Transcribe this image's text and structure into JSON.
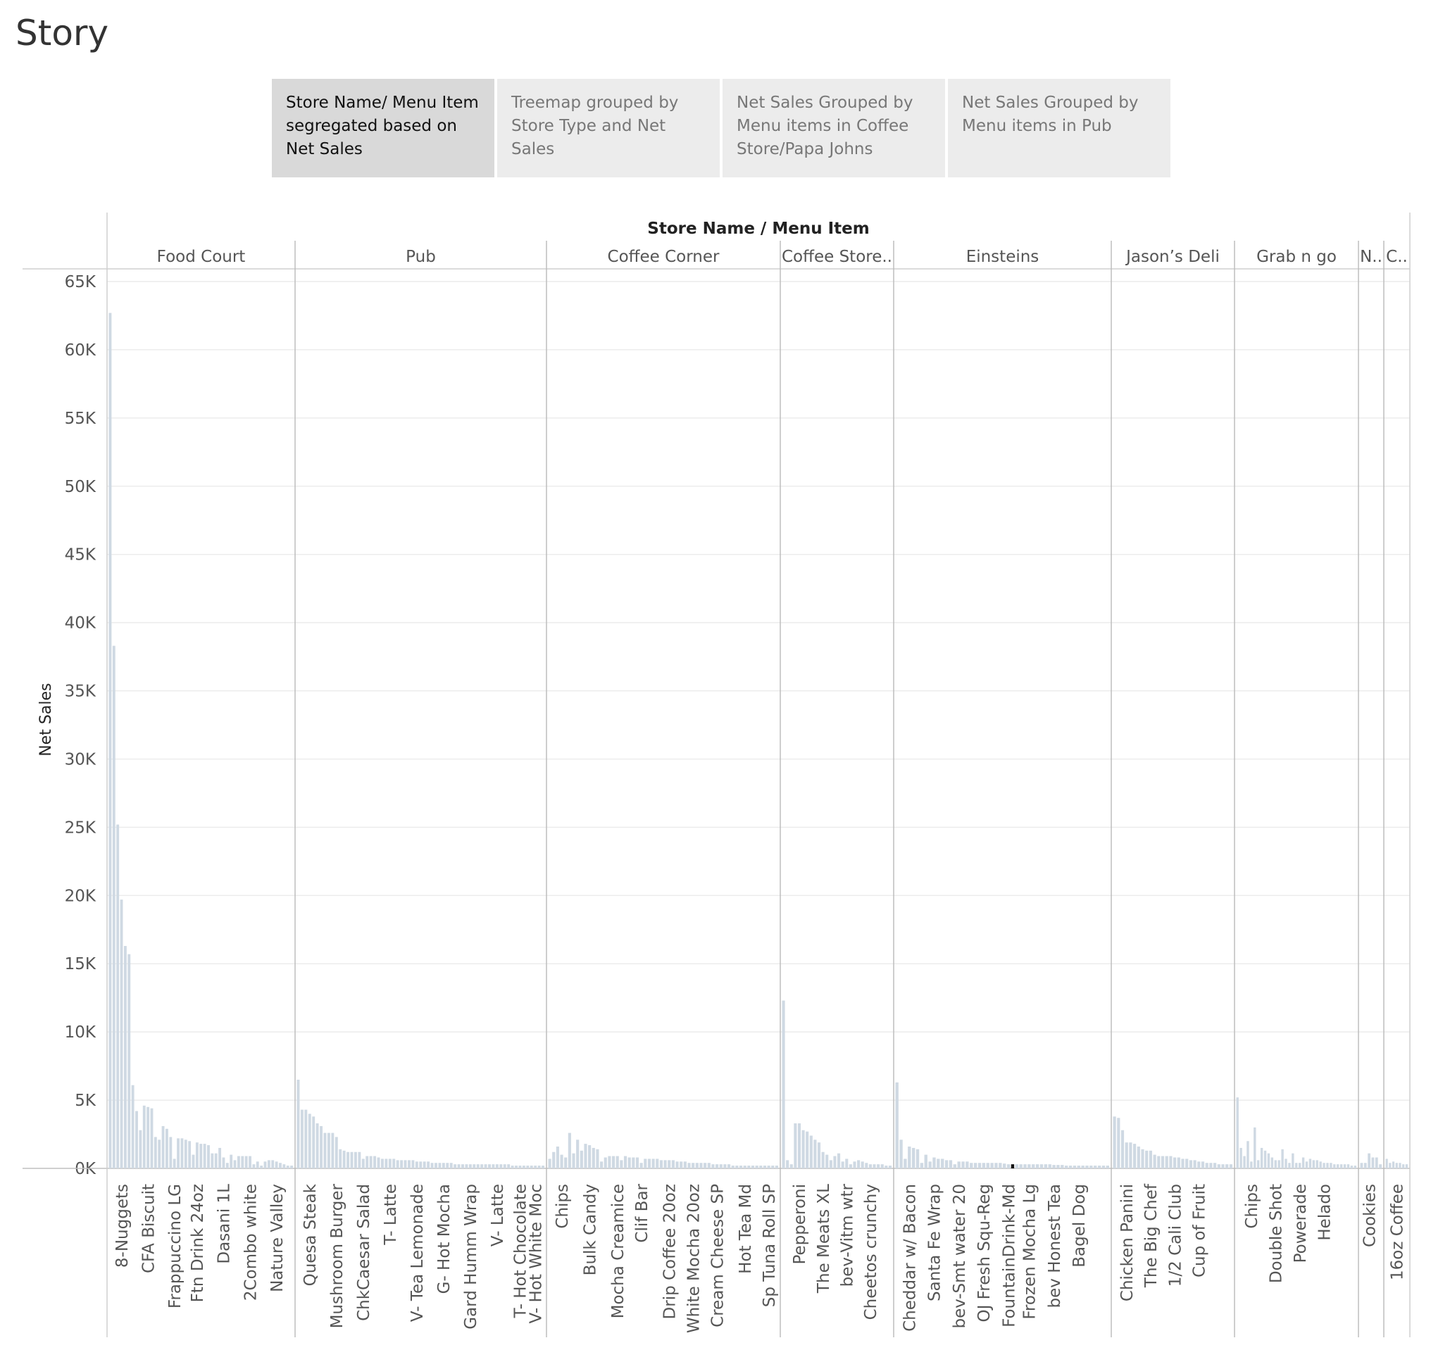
{
  "story": {
    "title": "Story",
    "tabs": [
      {
        "label": "Store Name/ Menu Item segregated based on Net Sales",
        "active": true
      },
      {
        "label": "Treemap grouped by Store Type and Net Sales",
        "active": false
      },
      {
        "label": "Net Sales Grouped by Menu items in Coffee Store/Papa Johns",
        "active": false
      },
      {
        "label": "Net Sales Grouped by Menu items in Pub",
        "active": false
      }
    ]
  },
  "chart_data": {
    "type": "bar",
    "header_title": "Store Name  /  Menu Item",
    "ylabel": "Net Sales",
    "ylim": [
      0,
      65000
    ],
    "yticks": [
      0,
      5000,
      10000,
      15000,
      20000,
      25000,
      30000,
      35000,
      40000,
      45000,
      50000,
      55000,
      60000,
      65000
    ],
    "ytick_labels": [
      "0K",
      "5K",
      "10K",
      "15K",
      "20K",
      "25K",
      "30K",
      "35K",
      "40K",
      "45K",
      "50K",
      "55K",
      "60K",
      "65K"
    ],
    "bar_color": "#cfd9e3",
    "highlight_color": "#111111",
    "grid": true,
    "groups": [
      {
        "name": "Food Court",
        "values": [
          62700,
          38300,
          25200,
          19700,
          16300,
          15700,
          6100,
          4200,
          2800,
          4600,
          4500,
          4400,
          2300,
          2100,
          3100,
          2900,
          2300,
          700,
          2200,
          2200,
          2100,
          2000,
          1000,
          1900,
          1800,
          1800,
          1700,
          1100,
          1100,
          1500,
          800,
          400,
          1000,
          600,
          900,
          900,
          900,
          900,
          300,
          500,
          200,
          500,
          600,
          600,
          500,
          400,
          300,
          200,
          200
        ],
        "labels": [
          {
            "index": 3,
            "text": "8-Nuggets"
          },
          {
            "index": 10,
            "text": "CFA Biscuit"
          },
          {
            "index": 17,
            "text": "Frappuccino LG"
          },
          {
            "index": 23,
            "text": "Ftn Drink 24oz"
          },
          {
            "index": 30,
            "text": "Dasani 1L"
          },
          {
            "index": 37,
            "text": "2Combo white"
          },
          {
            "index": 44,
            "text": "Nature Valley"
          }
        ]
      },
      {
        "name": "Pub",
        "values": [
          6500,
          4300,
          4300,
          4000,
          3800,
          3300,
          3100,
          2600,
          2600,
          2600,
          2300,
          1400,
          1300,
          1200,
          1200,
          1200,
          1200,
          700,
          900,
          900,
          900,
          800,
          700,
          700,
          700,
          700,
          600,
          600,
          600,
          600,
          600,
          500,
          500,
          500,
          500,
          400,
          400,
          400,
          400,
          400,
          400,
          300,
          300,
          300,
          300,
          300,
          300,
          300,
          300,
          300,
          300,
          300,
          300,
          300,
          300,
          300,
          200,
          200,
          200,
          200,
          200,
          200,
          200,
          200,
          200
        ],
        "labels": [
          {
            "index": 3,
            "text": "Quesa Steak"
          },
          {
            "index": 10,
            "text": "Mushroom Burger"
          },
          {
            "index": 17,
            "text": "ChkCaesar Salad"
          },
          {
            "index": 24,
            "text": "T- Latte"
          },
          {
            "index": 31,
            "text": "V- Tea Lemonade"
          },
          {
            "index": 38,
            "text": "G- Hot Mocha"
          },
          {
            "index": 45,
            "text": "Gard Humm Wrap"
          },
          {
            "index": 52,
            "text": "V- Latte"
          },
          {
            "index": 58,
            "text": "T- Hot Chocolate"
          },
          {
            "index": 62,
            "text": "V- Hot White Moc"
          }
        ]
      },
      {
        "name": "Coffee Corner",
        "values": [
          700,
          1200,
          1600,
          1000,
          800,
          2600,
          1100,
          2100,
          1300,
          1800,
          1700,
          1500,
          1400,
          500,
          800,
          900,
          900,
          900,
          600,
          900,
          800,
          800,
          800,
          400,
          700,
          700,
          700,
          700,
          600,
          600,
          600,
          600,
          500,
          500,
          500,
          400,
          400,
          400,
          400,
          400,
          400,
          300,
          300,
          300,
          300,
          300,
          200,
          200,
          200,
          200,
          200,
          200,
          200,
          200,
          200,
          200,
          200,
          200
        ],
        "labels": [
          {
            "index": 3,
            "text": "Chips"
          },
          {
            "index": 10,
            "text": "Bulk Candy"
          },
          {
            "index": 17,
            "text": "Mocha Creamice"
          },
          {
            "index": 23,
            "text": "Clif Bar"
          },
          {
            "index": 30,
            "text": "Drip Coffee 20oz"
          },
          {
            "index": 36,
            "text": "White Mocha 20oz"
          },
          {
            "index": 42,
            "text": "Cream Cheese SP"
          },
          {
            "index": 49,
            "text": "Hot Tea Md"
          },
          {
            "index": 55,
            "text": "Sp Tuna Roll SP"
          }
        ]
      },
      {
        "name": "Coffee Store..",
        "values": [
          12300,
          600,
          300,
          3300,
          3300,
          2800,
          2700,
          2400,
          2100,
          1900,
          1200,
          1000,
          600,
          900,
          1100,
          500,
          700,
          300,
          500,
          600,
          500,
          400,
          300,
          300,
          300,
          300,
          200,
          200
        ],
        "labels": [
          {
            "index": 4,
            "text": "Pepperoni"
          },
          {
            "index": 10,
            "text": "The Meats XL"
          },
          {
            "index": 16,
            "text": "bev-Vitm wtr"
          },
          {
            "index": 22,
            "text": "Cheetos crunchy"
          }
        ]
      },
      {
        "name": "Einsteins",
        "values": [
          6300,
          2100,
          700,
          1600,
          1500,
          1400,
          400,
          1000,
          500,
          800,
          700,
          700,
          600,
          600,
          300,
          500,
          500,
          500,
          400,
          400,
          400,
          400,
          400,
          400,
          400,
          400,
          350,
          300,
          300,
          300,
          300,
          300,
          300,
          300,
          300,
          300,
          300,
          300,
          250,
          250,
          250,
          200,
          200,
          200,
          200,
          200,
          200,
          200,
          200,
          200,
          200,
          200
        ],
        "highlight_index": 28,
        "labels": [
          {
            "index": 3,
            "text": "Cheddar w/ Bacon"
          },
          {
            "index": 9,
            "text": "Santa Fe Wrap"
          },
          {
            "index": 15,
            "text": "bev-Smt water 20"
          },
          {
            "index": 21,
            "text": "OJ Fresh Squ-Reg"
          },
          {
            "index": 27,
            "text": "FountainDrink-Md"
          },
          {
            "index": 32,
            "text": "Frozen Mocha Lg"
          },
          {
            "index": 38,
            "text": "bev Honest Tea"
          },
          {
            "index": 44,
            "text": "Bagel Dog"
          }
        ]
      },
      {
        "name": "Jason’s Deli",
        "values": [
          3800,
          3700,
          2800,
          1900,
          1900,
          1800,
          1600,
          1400,
          1300,
          1300,
          1000,
          900,
          900,
          900,
          900,
          800,
          800,
          700,
          700,
          600,
          600,
          500,
          500,
          400,
          400,
          400,
          300,
          300,
          300,
          300
        ],
        "labels": [
          {
            "index": 3,
            "text": "Chicken Panini"
          },
          {
            "index": 9,
            "text": "The Big Chef"
          },
          {
            "index": 15,
            "text": "1/2 Cali Club"
          },
          {
            "index": 21,
            "text": "Cup of Fruit"
          }
        ]
      },
      {
        "name": "Grab n go",
        "values": [
          5200,
          1500,
          900,
          2000,
          500,
          3000,
          600,
          1500,
          1300,
          1100,
          800,
          600,
          600,
          1400,
          700,
          400,
          1100,
          400,
          400,
          800,
          500,
          700,
          600,
          600,
          500,
          400,
          400,
          400,
          300,
          300,
          300,
          300,
          300,
          200,
          200
        ],
        "labels": [
          {
            "index": 4,
            "text": "Chips"
          },
          {
            "index": 11,
            "text": "Double Shot"
          },
          {
            "index": 18,
            "text": "Powerade"
          },
          {
            "index": 25,
            "text": "Helado"
          }
        ]
      },
      {
        "name": "N..",
        "values": [
          400,
          400,
          1100,
          800,
          800,
          300
        ],
        "labels": [
          {
            "index": 2,
            "text": "Cookies"
          }
        ]
      },
      {
        "name": "C..",
        "values": [
          700,
          400,
          500,
          400,
          400,
          300,
          300
        ],
        "labels": [
          {
            "index": 3,
            "text": "16oz Coffee"
          }
        ]
      }
    ]
  }
}
